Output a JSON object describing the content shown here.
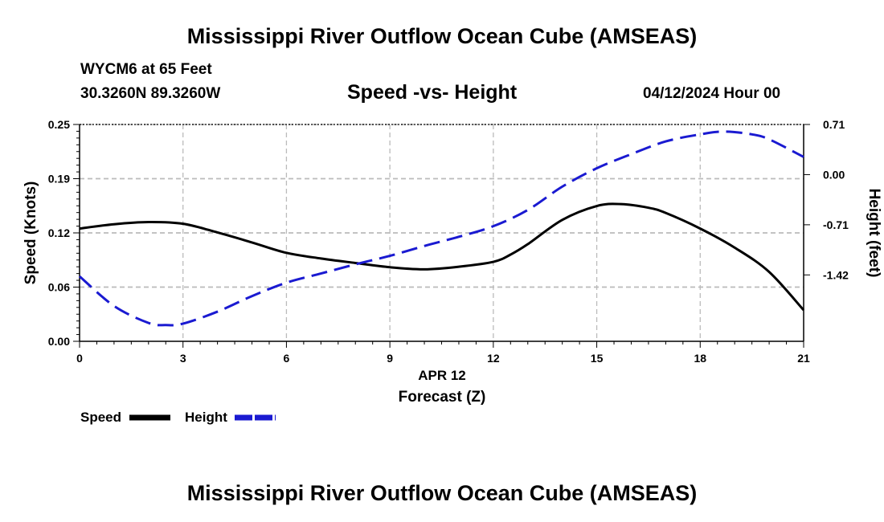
{
  "header": {
    "title": "Mississippi River Outflow Ocean Cube (AMSEAS)",
    "station": "WYCM6 at 65 Feet",
    "coords": "30.3260N  89.3260W",
    "subtitle": "Speed -vs- Height",
    "datetime": "04/12/2024 Hour 00"
  },
  "footer": {
    "title": "Mississippi River Outflow Ocean Cube (AMSEAS)"
  },
  "chart_data": {
    "type": "line",
    "title": "Speed -vs- Height",
    "xlabel": "Forecast (Z)",
    "xsublabel": "APR 12",
    "ylabel": "Speed (Knots)",
    "y2label": "Height (feet)",
    "xlim": [
      0,
      21
    ],
    "ylim": [
      0,
      0.25
    ],
    "y2lim": [
      -2.36,
      0.71
    ],
    "x_ticks": [
      0,
      3,
      6,
      9,
      12,
      15,
      18,
      21
    ],
    "x_tick_labels": [
      "0",
      "3",
      "6",
      "9",
      "12",
      "15",
      "18",
      "21"
    ],
    "y_ticks": [
      0,
      0.0625,
      0.125,
      0.1875,
      0.25
    ],
    "y_tick_labels": [
      "0.00",
      "0.06",
      "0.12",
      "0.19",
      "0.25"
    ],
    "y2_ticks": [
      -1.42,
      -0.71,
      0.0,
      0.71
    ],
    "y2_tick_labels": [
      "-1.42",
      "-0.71",
      "0.00",
      "0.71"
    ],
    "grid": true,
    "colors": {
      "speed": "#000000",
      "height": "#1a1ad1",
      "grid": "#bbbbbb"
    },
    "series": [
      {
        "name": "Speed",
        "axis": "left",
        "style": "solid",
        "x": [
          0,
          1,
          2,
          3,
          4,
          5,
          6,
          7,
          8,
          9,
          10,
          11,
          12,
          12.5,
          13,
          14,
          15,
          15.7,
          16.5,
          17,
          18,
          19,
          20,
          21
        ],
        "values": [
          0.13,
          0.135,
          0.1375,
          0.1355,
          0.1255,
          0.114,
          0.102,
          0.0955,
          0.0903,
          0.0854,
          0.083,
          0.086,
          0.0916,
          0.1,
          0.112,
          0.14,
          0.156,
          0.1582,
          0.154,
          0.148,
          0.13,
          0.108,
          0.08,
          0.036
        ]
      },
      {
        "name": "Height",
        "axis": "right",
        "style": "dashed",
        "x": [
          0,
          1,
          2,
          2.5,
          3,
          4,
          5,
          6,
          7,
          8,
          9,
          10,
          11,
          12,
          13,
          14,
          15,
          16,
          17,
          18,
          18.7,
          19.5,
          20,
          21
        ],
        "values": [
          -1.44,
          -1.86,
          -2.1,
          -2.13,
          -2.11,
          -1.94,
          -1.72,
          -1.53,
          -1.4,
          -1.27,
          -1.15,
          -1.01,
          -0.88,
          -0.73,
          -0.5,
          -0.17,
          0.09,
          0.29,
          0.47,
          0.57,
          0.61,
          0.57,
          0.5,
          0.25
        ]
      }
    ],
    "legend": {
      "position": "bottom-left",
      "entries": [
        {
          "label": "Speed",
          "series": "Speed"
        },
        {
          "label": "Height",
          "series": "Height"
        }
      ]
    }
  }
}
